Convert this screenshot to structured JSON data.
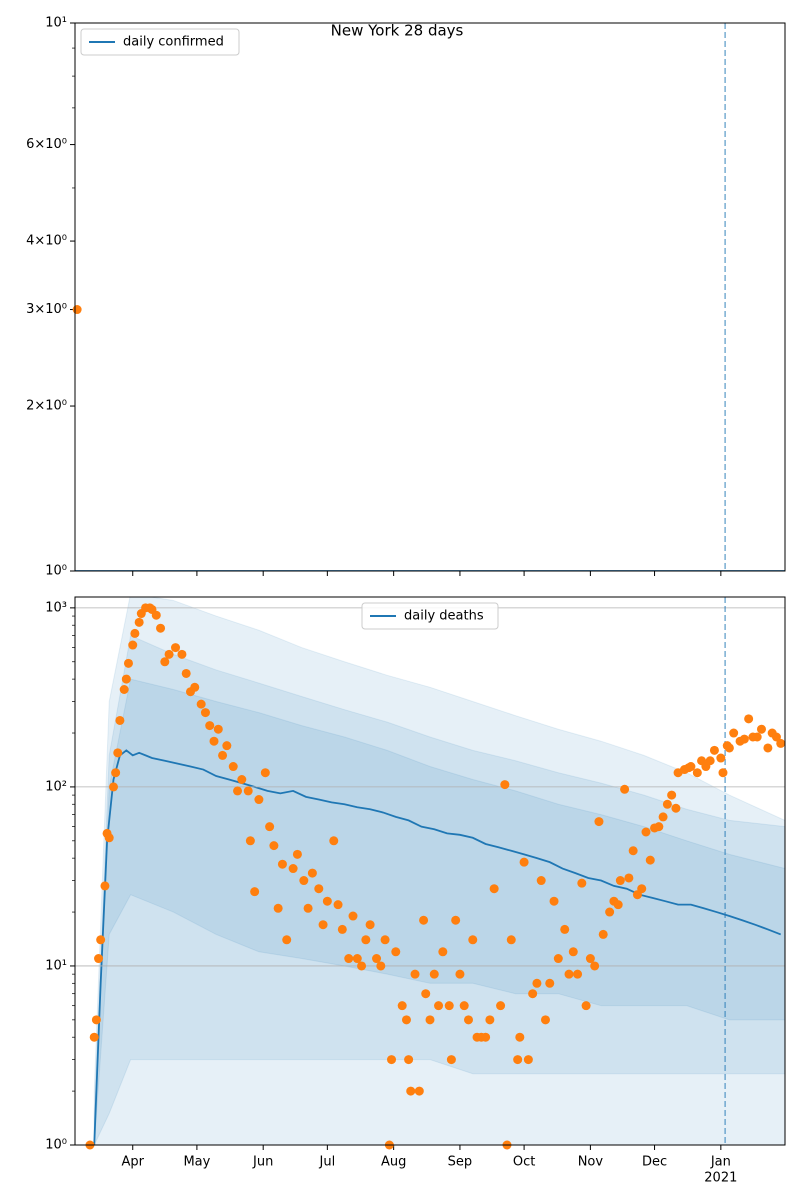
{
  "chart_data": [
    {
      "type": "line",
      "title": "New York 28 days",
      "yscale": "log",
      "ylim": [
        1,
        10
      ],
      "yticks": [
        {
          "value": 1,
          "label": "10⁰"
        },
        {
          "value": 2,
          "label": "2×10⁰"
        },
        {
          "value": 3,
          "label": "3×10⁰"
        },
        {
          "value": 4,
          "label": "4×10⁰"
        },
        {
          "value": 6,
          "label": "6×10⁰"
        },
        {
          "value": 10,
          "label": "10¹"
        }
      ],
      "minor_yticks": [
        5,
        7,
        8,
        9
      ],
      "xlim": [
        64,
        396
      ],
      "xticks": [
        91,
        121,
        152,
        182,
        213,
        244,
        274,
        305,
        335,
        366
      ],
      "vline": 368,
      "legend": "upper left",
      "grid": false,
      "series": [
        {
          "kind": "line",
          "name": "daily confirmed",
          "color": "#1f77b4",
          "x": [
            64,
            396
          ],
          "values": [
            1,
            1
          ]
        },
        {
          "kind": "scatter",
          "color": "#ff7f0e",
          "x": [
            65
          ],
          "values": [
            3
          ]
        }
      ]
    },
    {
      "type": "line",
      "yscale": "log",
      "ylim": [
        1,
        1150
      ],
      "yticks": [
        {
          "value": 1,
          "label": "10⁰"
        },
        {
          "value": 10,
          "label": "10¹"
        },
        {
          "value": 100,
          "label": "10²"
        },
        {
          "value": 1000,
          "label": "10³"
        }
      ],
      "minor_yticks": [
        2,
        3,
        4,
        5,
        6,
        7,
        8,
        9,
        20,
        30,
        40,
        50,
        60,
        70,
        80,
        90,
        200,
        300,
        400,
        500,
        600,
        700,
        800,
        900
      ],
      "xlim": [
        64,
        396
      ],
      "xticks": [
        {
          "value": 91,
          "label": "Apr"
        },
        {
          "value": 121,
          "label": "May"
        },
        {
          "value": 152,
          "label": "Jun"
        },
        {
          "value": 182,
          "label": "Jul"
        },
        {
          "value": 213,
          "label": "Aug"
        },
        {
          "value": 244,
          "label": "Sep"
        },
        {
          "value": 274,
          "label": "Oct"
        },
        {
          "value": 305,
          "label": "Nov"
        },
        {
          "value": 335,
          "label": "Dec"
        },
        {
          "value": 366,
          "label": "Jan",
          "year": "2021"
        }
      ],
      "vline": 368,
      "legend": "upper center",
      "grid": true,
      "bands": [
        {
          "color": "#1f77b4",
          "x": [
            73,
            80,
            90,
            110,
            130,
            150,
            170,
            190,
            210,
            230,
            250,
            270,
            290,
            310,
            330,
            350,
            370,
            396
          ],
          "lower": [
            1,
            1,
            1,
            1,
            1,
            1,
            1,
            1,
            1,
            1,
            1,
            1,
            1,
            1,
            1,
            1,
            1,
            1
          ],
          "upper": [
            2,
            300,
            1200,
            1100,
            900,
            750,
            600,
            500,
            420,
            360,
            300,
            250,
            210,
            180,
            150,
            120,
            90,
            65
          ]
        },
        {
          "color": "#1f77b4",
          "x": [
            73,
            80,
            90,
            110,
            130,
            150,
            170,
            190,
            210,
            230,
            250,
            270,
            290,
            310,
            330,
            350,
            370,
            396
          ],
          "lower": [
            1,
            1.5,
            3,
            3,
            3,
            3,
            3,
            3,
            3,
            3,
            2.5,
            2.5,
            2.5,
            2.5,
            2.5,
            2.5,
            2.5,
            2.5
          ],
          "upper": [
            1.5,
            150,
            700,
            550,
            450,
            380,
            320,
            270,
            230,
            190,
            160,
            140,
            120,
            105,
            90,
            75,
            65,
            60
          ]
        },
        {
          "color": "#1f77b4",
          "x": [
            73,
            80,
            90,
            110,
            130,
            150,
            170,
            190,
            210,
            230,
            250,
            270,
            290,
            310,
            330,
            350,
            370,
            396
          ],
          "lower": [
            1,
            15,
            25,
            20,
            15,
            12,
            11,
            10,
            9,
            8,
            8,
            7,
            7,
            6,
            6,
            6,
            5,
            5
          ],
          "upper": [
            1.2,
            100,
            400,
            350,
            300,
            260,
            220,
            190,
            160,
            130,
            110,
            95,
            80,
            70,
            60,
            50,
            42,
            35
          ]
        }
      ],
      "series": [
        {
          "kind": "line",
          "name": "daily deaths",
          "color": "#1f77b4",
          "x": [
            73,
            76,
            79,
            82,
            85,
            88,
            91,
            94,
            97,
            100,
            106,
            112,
            118,
            124,
            130,
            136,
            142,
            148,
            154,
            160,
            166,
            172,
            178,
            184,
            190,
            196,
            202,
            208,
            214,
            220,
            226,
            232,
            238,
            244,
            250,
            256,
            262,
            268,
            274,
            280,
            286,
            292,
            298,
            304,
            310,
            316,
            322,
            328,
            334,
            340,
            346,
            352,
            358,
            364,
            370,
            376,
            382,
            388,
            394
          ],
          "values": [
            1,
            8,
            50,
            110,
            150,
            160,
            150,
            155,
            150,
            145,
            140,
            135,
            130,
            125,
            115,
            110,
            105,
            100,
            95,
            92,
            95,
            88,
            85,
            82,
            80,
            77,
            75,
            72,
            68,
            65,
            60,
            58,
            55,
            54,
            52,
            48,
            46,
            44,
            42,
            40,
            38,
            35,
            33,
            31,
            30,
            28,
            27,
            25,
            24,
            23,
            22,
            22,
            21,
            20,
            19,
            18,
            17,
            16,
            15
          ]
        },
        {
          "kind": "scatter",
          "color": "#ff7f0e",
          "x": [
            71,
            73,
            74,
            75,
            76,
            78,
            79,
            80,
            82,
            83,
            84,
            85,
            87,
            88,
            89,
            91,
            92,
            94,
            95,
            97,
            99,
            100,
            102,
            104,
            106,
            108,
            111,
            114,
            116,
            118,
            120,
            123,
            125,
            127,
            129,
            131,
            133,
            135,
            138,
            140,
            142,
            145,
            146,
            148,
            150,
            153,
            155,
            157,
            159,
            161,
            163,
            166,
            168,
            171,
            173,
            175,
            178,
            180,
            182,
            185,
            187,
            189,
            192,
            194,
            196,
            198,
            200,
            202,
            205,
            207,
            209,
            211,
            212,
            214,
            217,
            219,
            220,
            221,
            223,
            225,
            227,
            228,
            230,
            232,
            234,
            236,
            239,
            240,
            242,
            244,
            246,
            248,
            250,
            252,
            254,
            256,
            258,
            260,
            263,
            265,
            266,
            268,
            271,
            272,
            274,
            276,
            278,
            280,
            282,
            284,
            286,
            288,
            290,
            293,
            295,
            297,
            299,
            301,
            303,
            305,
            307,
            309,
            311,
            314,
            316,
            318,
            319,
            321,
            323,
            325,
            327,
            329,
            331,
            333,
            335,
            337,
            339,
            341,
            343,
            345,
            346,
            349,
            351,
            352,
            355,
            357,
            359,
            361,
            363,
            366,
            367,
            369,
            370,
            372,
            375,
            377,
            379,
            381,
            383,
            385,
            388,
            390,
            392,
            394
          ],
          "values": [
            1,
            4,
            5,
            11,
            14,
            28,
            55,
            52,
            100,
            120,
            155,
            235,
            350,
            400,
            490,
            620,
            720,
            830,
            930,
            1000,
            1000,
            980,
            910,
            770,
            500,
            550,
            600,
            550,
            430,
            340,
            360,
            290,
            260,
            220,
            180,
            210,
            150,
            170,
            130,
            95,
            110,
            95,
            50,
            26,
            85,
            120,
            60,
            47,
            21,
            37,
            14,
            35,
            42,
            30,
            21,
            33,
            27,
            17,
            23,
            50,
            22,
            16,
            11,
            19,
            11,
            10,
            14,
            17,
            11,
            10,
            14,
            1,
            3,
            12,
            6,
            5,
            3,
            2,
            9,
            2,
            18,
            7,
            5,
            9,
            6,
            12,
            6,
            3,
            18,
            9,
            6,
            5,
            14,
            4,
            4,
            4,
            5,
            27,
            6,
            103,
            1,
            14,
            3,
            4,
            38,
            3,
            7,
            8,
            30,
            5,
            8,
            23,
            11,
            16,
            9,
            12,
            9,
            29,
            6,
            11,
            10,
            64,
            15,
            20,
            23,
            22,
            30,
            97,
            31,
            44,
            25,
            27,
            56,
            39,
            59,
            60,
            68,
            80,
            90,
            76,
            120,
            125,
            128,
            130,
            120,
            140,
            130,
            140,
            160,
            145,
            120,
            170,
            165,
            200,
            180,
            185,
            240,
            190,
            190,
            210,
            165,
            200,
            190,
            175
          ]
        }
      ]
    }
  ]
}
